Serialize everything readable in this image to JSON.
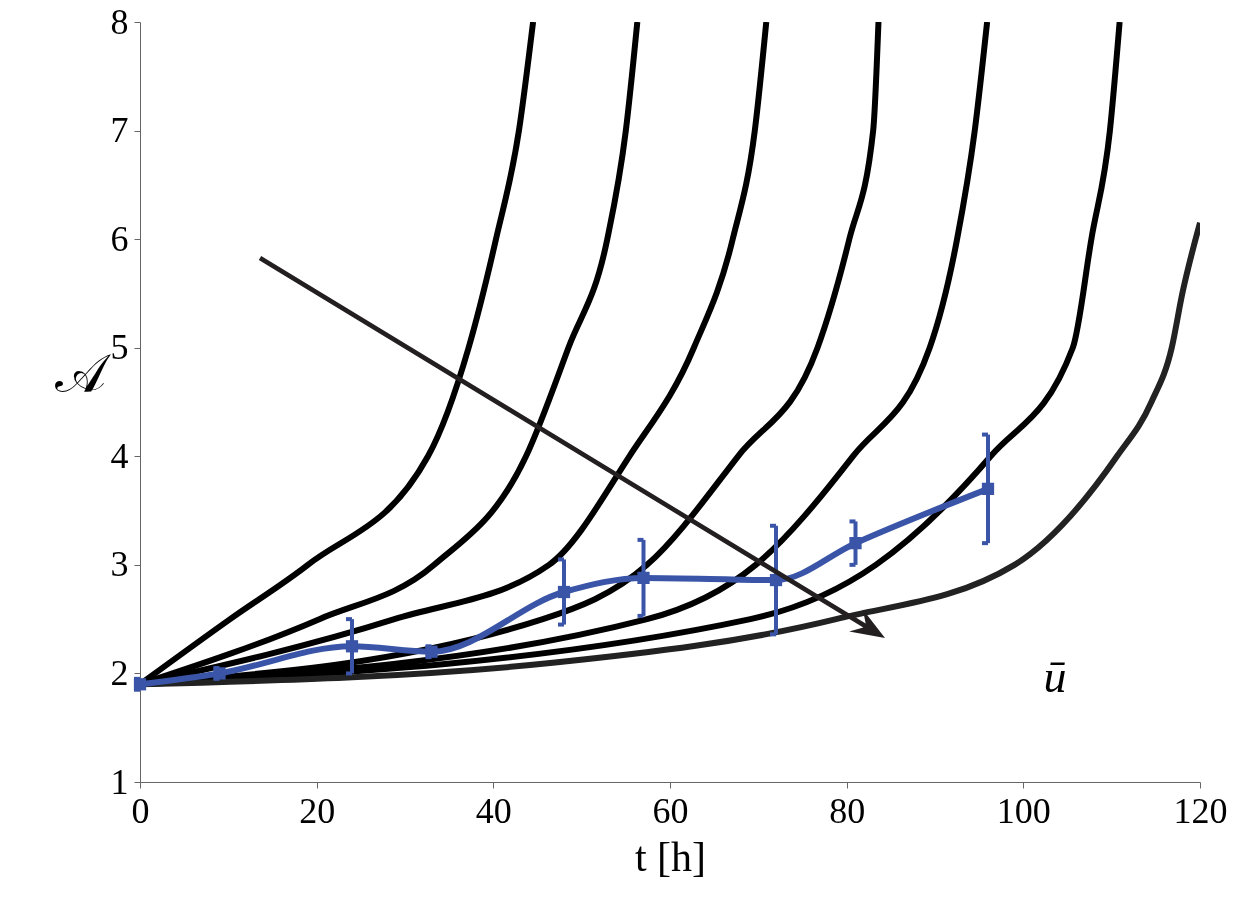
{
  "chart_data": {
    "type": "line",
    "xlabel": "t [h]",
    "ylabel": "𝒜",
    "xlim": [
      0,
      120
    ],
    "ylim": [
      1,
      8
    ],
    "xticks": [
      0,
      20,
      40,
      60,
      80,
      100,
      120
    ],
    "yticks": [
      1,
      2,
      3,
      4,
      5,
      6,
      7,
      8
    ],
    "grid": false,
    "legend": false,
    "series": [
      {
        "color": "#000000",
        "x": [
          0,
          10.2,
          19,
          32.6,
          37.2,
          40.3,
          42.9,
          44.5
        ],
        "values": [
          1.9,
          2.5,
          3,
          4,
          5,
          6,
          7,
          8
        ]
      },
      {
        "color": "#000000",
        "x": [
          0,
          20.3,
          33.3,
          43.7,
          48.5,
          52.9,
          55.0,
          56.3
        ],
        "values": [
          1.9,
          2.5,
          3,
          4,
          5,
          6,
          7,
          8
        ]
      },
      {
        "color": "#000000",
        "x": [
          0,
          28.8,
          46.3,
          55.4,
          62.7,
          67.1,
          69.6,
          70.9
        ],
        "values": [
          1.9,
          2.5,
          3,
          4,
          5,
          6,
          7,
          8
        ]
      },
      {
        "color": "#000000",
        "x": [
          0,
          45.6,
          57.4,
          67.7,
          76.7,
          80.3,
          83.0,
          83.6
        ],
        "values": [
          1.9,
          2.5,
          3,
          4,
          5,
          6,
          7,
          8
        ]
      },
      {
        "color": "#000000",
        "x": [
          0,
          57.4,
          69.7,
          80.7,
          89.4,
          92.5,
          94.5,
          95.9
        ],
        "values": [
          1.9,
          2.5,
          3,
          4,
          5,
          6,
          7,
          8
        ]
      },
      {
        "color": "#000000",
        "x": [
          0,
          69.1,
          83.3,
          96.3,
          105.6,
          107.7,
          109.8,
          110.9
        ],
        "values": [
          1.9,
          2.5,
          3,
          4,
          5,
          6,
          7,
          8
        ]
      },
      {
        "color": "#222222",
        "x": [
          0,
          47,
          78.8,
          99,
          110.6,
          114.5,
          116.8,
          118,
          120
        ],
        "values": [
          1.9,
          2.1,
          2.5,
          3,
          4,
          4.5,
          5,
          5.5,
          6.15
        ]
      },
      {
        "color": "#3a55a8",
        "marker": "square",
        "x": [
          0,
          9,
          24,
          33,
          48,
          57,
          72,
          81,
          96
        ],
        "values": [
          1.9,
          2.0,
          2.25,
          2.2,
          2.75,
          2.88,
          2.86,
          3.2,
          3.7
        ],
        "errors": [
          0.05,
          0.05,
          0.25,
          0.05,
          0.3,
          0.35,
          0.5,
          0.2,
          0.5
        ]
      }
    ],
    "annotations": [
      "ū"
    ]
  }
}
